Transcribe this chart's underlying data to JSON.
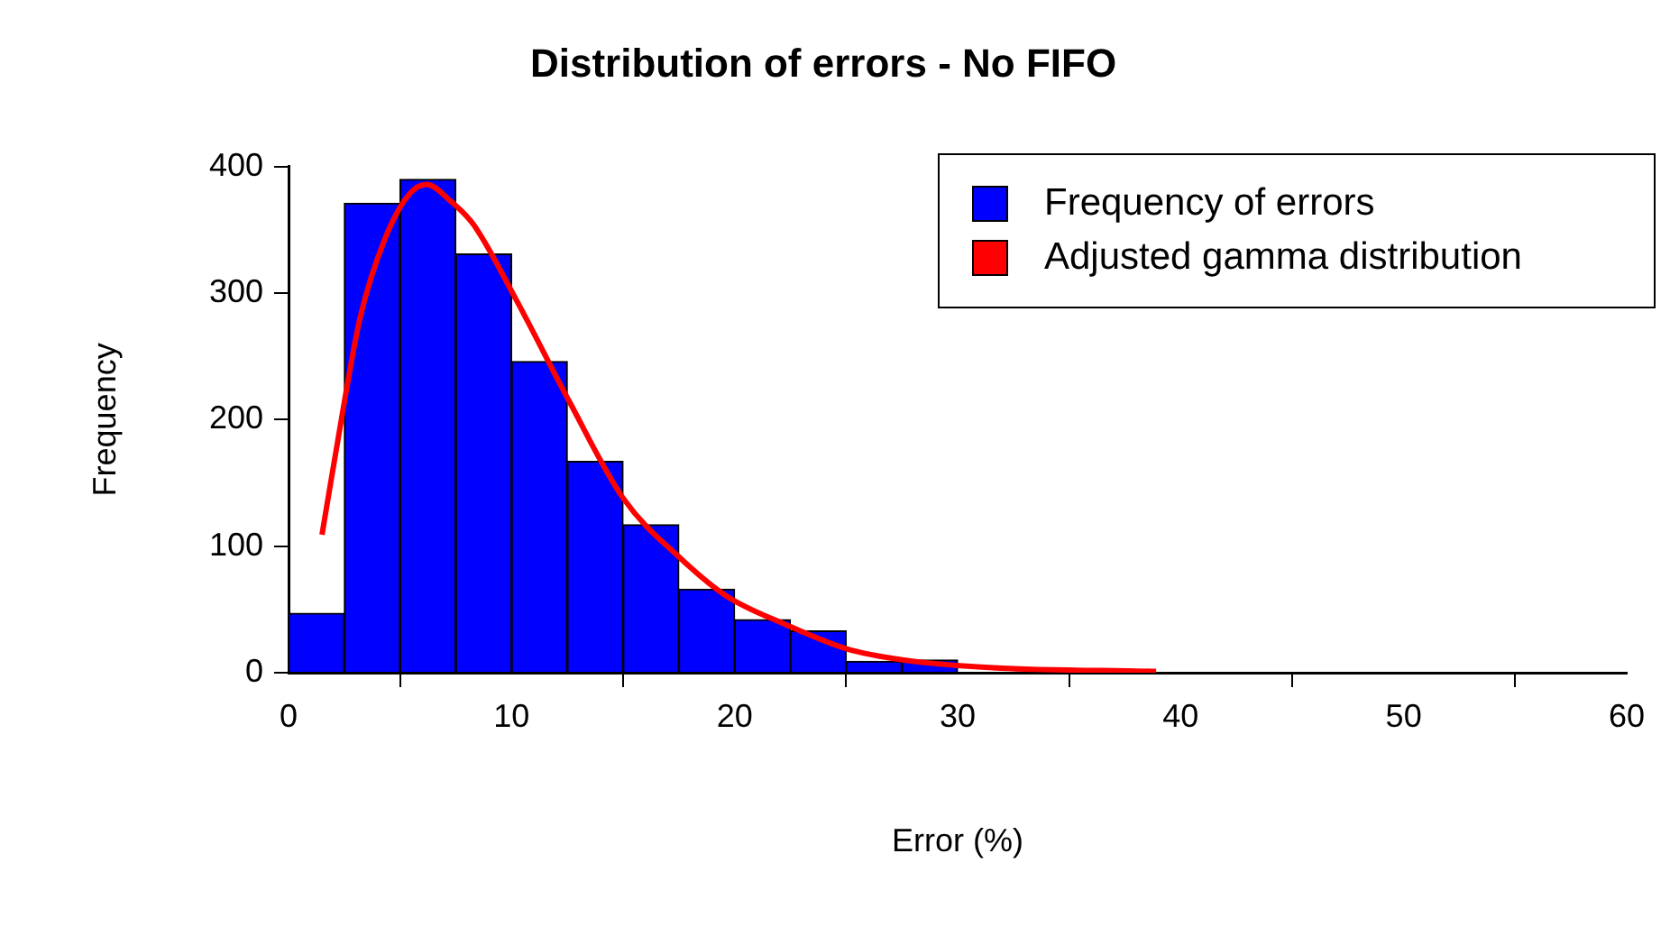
{
  "chart_data": {
    "type": "histogram",
    "title": "Distribution of errors - No FIFO",
    "xlabel": "Error (%)",
    "ylabel": "Frequency",
    "bins": [
      0,
      2.5,
      5,
      7.5,
      10,
      12.5,
      15,
      17.5,
      20,
      22.5,
      25,
      27.5,
      30,
      32.5,
      35,
      37.5,
      40,
      42.5,
      45,
      47.5,
      50,
      52.5,
      55,
      57.5,
      60
    ],
    "series": [
      {
        "name": "Frequency of errors",
        "type": "histogram",
        "color": "#0000ff",
        "values": [
          47,
          371,
          390,
          331,
          246,
          167,
          117,
          66,
          42,
          33,
          9,
          10,
          null,
          null,
          1,
          null,
          0,
          0,
          0,
          0,
          0,
          0,
          0,
          0
        ]
      },
      {
        "name": "Adjusted gamma distribution",
        "type": "line",
        "color": "#ff0000",
        "x": [
          1.5,
          2.55,
          3.2,
          4.3,
          5.4,
          6.2,
          7.25,
          8.3,
          10.2,
          12.6,
          15,
          17.6,
          19.6,
          22.3,
          25,
          27.6,
          31.6,
          38.9
        ],
        "values": [
          109,
          219,
          280,
          342,
          378,
          386,
          373,
          354,
          295,
          214,
          138,
          90,
          61,
          38,
          19,
          10,
          4,
          1
        ]
      }
    ],
    "xlim": [
      0,
      60
    ],
    "xticks": [
      0,
      10,
      20,
      30,
      40,
      50,
      60
    ],
    "ylim": [
      0,
      400
    ],
    "yticks": [
      0,
      100,
      200,
      300,
      400
    ],
    "legend": "top right"
  }
}
